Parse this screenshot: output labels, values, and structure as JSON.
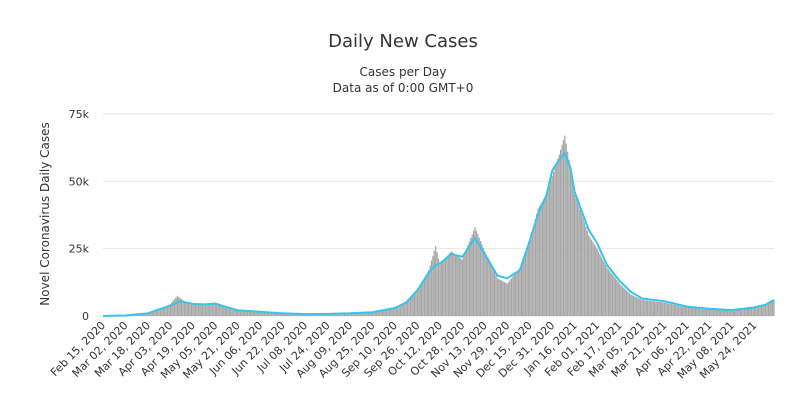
{
  "chart_data": {
    "type": "bar",
    "title": "Daily New Cases",
    "subtitle_lines": [
      "Cases per Day",
      "Data as of 0:00 GMT+0"
    ],
    "ylabel": "Novel Coronavirus Daily Cases",
    "xlabel": "",
    "ylim": [
      0,
      75000
    ],
    "y_ticks": [
      {
        "value": 0,
        "label": "0"
      },
      {
        "value": 25000,
        "label": "25k"
      },
      {
        "value": 50000,
        "label": "50k"
      },
      {
        "value": 75000,
        "label": "75k"
      }
    ],
    "x_tick_labels": [
      "Feb 15, 2020",
      "Mar 02, 2020",
      "Mar 18, 2020",
      "Apr 03, 2020",
      "Apr 19, 2020",
      "May 05, 2020",
      "May 21, 2020",
      "Jun 06, 2020",
      "Jun 22, 2020",
      "Jul 08, 2020",
      "Jul 24, 2020",
      "Aug 09, 2020",
      "Aug 25, 2020",
      "Sep 10, 2020",
      "Sep 26, 2020",
      "Oct 12, 2020",
      "Oct 28, 2020",
      "Nov 13, 2020",
      "Nov 29, 2020",
      "Dec 15, 2020",
      "Dec 31, 2020",
      "Jan 16, 2021",
      "Feb 01, 2021",
      "Feb 17, 2021",
      "Mar 05, 2021",
      "Mar 21, 2021",
      "Apr 06, 2021",
      "Apr 22, 2021",
      "May 08, 2021",
      "May 24, 2021"
    ],
    "x_range": [
      "Feb 15, 2020",
      "Jun 07, 2021"
    ],
    "grid": true,
    "legend": "none",
    "colors": {
      "bars": "#a6a6a6",
      "moving_average": "#37c4eb"
    },
    "series": [
      {
        "type": "column",
        "points": [
          [
            "Feb 15, 2020",
            0
          ],
          [
            "Mar 02, 2020",
            200
          ],
          [
            "Mar 18, 2020",
            1000
          ],
          [
            "Mar 26, 2020",
            2500
          ],
          [
            "Apr 03, 2020",
            4500
          ],
          [
            "Apr 08, 2020",
            7500
          ],
          [
            "Apr 14, 2020",
            5000
          ],
          [
            "Apr 19, 2020",
            4500
          ],
          [
            "Apr 27, 2020",
            4000
          ],
          [
            "May 05, 2020",
            4800
          ],
          [
            "May 13, 2020",
            3200
          ],
          [
            "May 21, 2020",
            2000
          ],
          [
            "Jun 06, 2020",
            1500
          ],
          [
            "Jun 22, 2020",
            1000
          ],
          [
            "Jul 08, 2020",
            600
          ],
          [
            "Jul 24, 2020",
            800
          ],
          [
            "Aug 09, 2020",
            1000
          ],
          [
            "Aug 25, 2020",
            1400
          ],
          [
            "Sep 10, 2020",
            3000
          ],
          [
            "Sep 18, 2020",
            5500
          ],
          [
            "Sep 26, 2020",
            10000
          ],
          [
            "Oct 04, 2020",
            17000
          ],
          [
            "Oct 09, 2020",
            26000
          ],
          [
            "Oct 12, 2020",
            19000
          ],
          [
            "Oct 20, 2020",
            24000
          ],
          [
            "Oct 28, 2020",
            21000
          ],
          [
            "Nov 06, 2020",
            33000
          ],
          [
            "Nov 13, 2020",
            24000
          ],
          [
            "Nov 22, 2020",
            14000
          ],
          [
            "Nov 29, 2020",
            12000
          ],
          [
            "Dec 08, 2020",
            18000
          ],
          [
            "Dec 15, 2020",
            28000
          ],
          [
            "Dec 21, 2020",
            40000
          ],
          [
            "Dec 27, 2020",
            45000
          ],
          [
            "Dec 31, 2020",
            52000
          ],
          [
            "Jan 05, 2021",
            60000
          ],
          [
            "Jan 09, 2021",
            67000
          ],
          [
            "Jan 13, 2021",
            55000
          ],
          [
            "Jan 16, 2021",
            45000
          ],
          [
            "Jan 21, 2021",
            38000
          ],
          [
            "Jan 26, 2021",
            30000
          ],
          [
            "Feb 01, 2021",
            25000
          ],
          [
            "Feb 08, 2021",
            18000
          ],
          [
            "Feb 17, 2021",
            12000
          ],
          [
            "Feb 25, 2021",
            8000
          ],
          [
            "Mar 05, 2021",
            6000
          ],
          [
            "Mar 21, 2021",
            5000
          ],
          [
            "Apr 06, 2021",
            3200
          ],
          [
            "Apr 22, 2021",
            2500
          ],
          [
            "May 08, 2021",
            2000
          ],
          [
            "May 24, 2021",
            3000
          ],
          [
            "Jun 01, 2021",
            4000
          ],
          [
            "Jun 07, 2021",
            6000
          ]
        ]
      },
      {
        "type": "line",
        "points": [
          [
            "Feb 15, 2020",
            0
          ],
          [
            "Mar 02, 2020",
            200
          ],
          [
            "Mar 18, 2020",
            1000
          ],
          [
            "Mar 26, 2020",
            2500
          ],
          [
            "Apr 03, 2020",
            3800
          ],
          [
            "Apr 10, 2020",
            5500
          ],
          [
            "Apr 19, 2020",
            4500
          ],
          [
            "Apr 27, 2020",
            4300
          ],
          [
            "May 05, 2020",
            4600
          ],
          [
            "May 13, 2020",
            3300
          ],
          [
            "May 21, 2020",
            2100
          ],
          [
            "Jun 06, 2020",
            1600
          ],
          [
            "Jun 22, 2020",
            1000
          ],
          [
            "Jul 08, 2020",
            700
          ],
          [
            "Jul 24, 2020",
            800
          ],
          [
            "Aug 09, 2020",
            1000
          ],
          [
            "Aug 25, 2020",
            1400
          ],
          [
            "Sep 10, 2020",
            3000
          ],
          [
            "Sep 18, 2020",
            5000
          ],
          [
            "Sep 26, 2020",
            9500
          ],
          [
            "Oct 04, 2020",
            16000
          ],
          [
            "Oct 09, 2020",
            19000
          ],
          [
            "Oct 12, 2020",
            19500
          ],
          [
            "Oct 20, 2020",
            23000
          ],
          [
            "Oct 28, 2020",
            22000
          ],
          [
            "Nov 06, 2020",
            29000
          ],
          [
            "Nov 13, 2020",
            23000
          ],
          [
            "Nov 22, 2020",
            15000
          ],
          [
            "Nov 29, 2020",
            14000
          ],
          [
            "Dec 08, 2020",
            17000
          ],
          [
            "Dec 15, 2020",
            28000
          ],
          [
            "Dec 21, 2020",
            38000
          ],
          [
            "Dec 27, 2020",
            45000
          ],
          [
            "Dec 31, 2020",
            54000
          ],
          [
            "Jan 05, 2021",
            58000
          ],
          [
            "Jan 09, 2021",
            60500
          ],
          [
            "Jan 13, 2021",
            55000
          ],
          [
            "Jan 16, 2021",
            46000
          ],
          [
            "Jan 21, 2021",
            39000
          ],
          [
            "Jan 26, 2021",
            32000
          ],
          [
            "Feb 01, 2021",
            27000
          ],
          [
            "Feb 08, 2021",
            19000
          ],
          [
            "Feb 17, 2021",
            13000
          ],
          [
            "Feb 25, 2021",
            9000
          ],
          [
            "Mar 05, 2021",
            6500
          ],
          [
            "Mar 21, 2021",
            5500
          ],
          [
            "Apr 06, 2021",
            3500
          ],
          [
            "Apr 22, 2021",
            2700
          ],
          [
            "May 08, 2021",
            2200
          ],
          [
            "May 24, 2021",
            3200
          ],
          [
            "Jun 01, 2021",
            4200
          ],
          [
            "Jun 07, 2021",
            6000
          ]
        ]
      }
    ]
  }
}
